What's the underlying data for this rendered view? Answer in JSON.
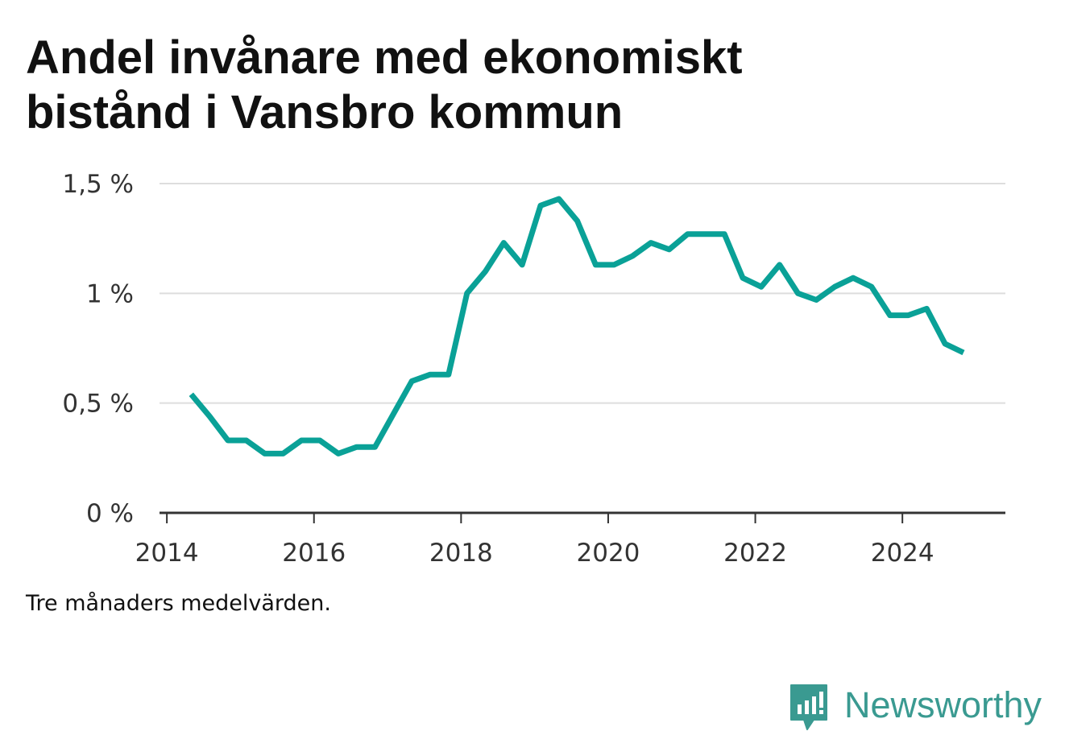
{
  "title_lines": [
    "Andel invånare med ekonomiskt",
    "bistånd i Vansbro kommun"
  ],
  "note": "Tre månaders medelvärden.",
  "brand": {
    "name": "Newsworthy",
    "icon": "newsworthy-logo-icon"
  },
  "colors": {
    "line": "#0aa197",
    "grid": "#dddddd",
    "axis": "#333333",
    "brand": "#3a9a91"
  },
  "chart_data": {
    "type": "line",
    "title": "Andel invånare med ekonomiskt bistånd i Vansbro kommun",
    "xlabel": "",
    "ylabel": "",
    "xlim": [
      2013.9,
      2025.4
    ],
    "ylim": [
      0,
      1.5
    ],
    "grid": true,
    "x_ticks": [
      {
        "value": 2014,
        "label": "2014"
      },
      {
        "value": 2016,
        "label": "2016"
      },
      {
        "value": 2018,
        "label": "2018"
      },
      {
        "value": 2020,
        "label": "2020"
      },
      {
        "value": 2022,
        "label": "2022"
      },
      {
        "value": 2024,
        "label": "2024"
      }
    ],
    "y_ticks": [
      {
        "value": 0,
        "label": "0 %"
      },
      {
        "value": 0.5,
        "label": "0,5 %"
      },
      {
        "value": 1,
        "label": "1 %"
      },
      {
        "value": 1.5,
        "label": "1,5 %"
      }
    ],
    "series": [
      {
        "x": [
          2014.33,
          2014.58,
          2014.83,
          2015.08,
          2015.33,
          2015.58,
          2015.83,
          2016.08,
          2016.33,
          2016.58,
          2016.83,
          2017.08,
          2017.33,
          2017.58,
          2017.83,
          2018.08,
          2018.33,
          2018.58,
          2018.83,
          2019.08,
          2019.33,
          2019.58,
          2019.83,
          2020.08,
          2020.33,
          2020.58,
          2020.83,
          2021.08,
          2021.33,
          2021.58,
          2021.83,
          2022.08,
          2022.33,
          2022.58,
          2022.83,
          2023.08,
          2023.33,
          2023.58,
          2023.83,
          2024.08,
          2024.33,
          2024.58,
          2024.83
        ],
        "values": [
          0.54,
          0.44,
          0.33,
          0.33,
          0.27,
          0.27,
          0.33,
          0.33,
          0.27,
          0.3,
          0.3,
          0.45,
          0.6,
          0.63,
          0.63,
          1.0,
          1.1,
          1.23,
          1.13,
          1.4,
          1.43,
          1.33,
          1.13,
          1.13,
          1.17,
          1.23,
          1.2,
          1.27,
          1.27,
          1.27,
          1.07,
          1.03,
          1.13,
          1.0,
          0.97,
          1.03,
          1.07,
          1.03,
          0.9,
          0.9,
          0.93,
          0.77,
          0.73
        ]
      }
    ]
  }
}
